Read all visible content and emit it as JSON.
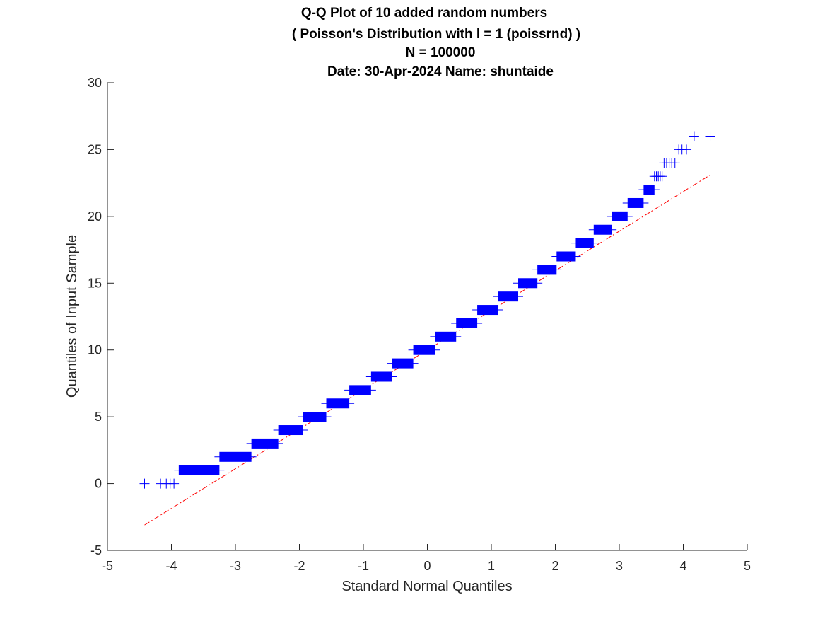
{
  "chart_data": {
    "type": "scatter",
    "title": [
      "Q-Q Plot of 10 added random numbers",
      "( Poisson's Distribution with l = 1 (poissrnd) )",
      "N = 100000",
      "Date: 30-Apr-2024 Name: shuntaide"
    ],
    "xlabel": "Standard Normal Quantiles",
    "ylabel": "Quantiles of Input Sample",
    "xlim": [
      -5,
      5
    ],
    "ylim": [
      -5,
      30
    ],
    "xticks": [
      "-5",
      "-4",
      "-3",
      "-2",
      "-1",
      "0",
      "1",
      "2",
      "3",
      "4",
      "5"
    ],
    "yticks": [
      "-5",
      "0",
      "5",
      "10",
      "15",
      "20",
      "25",
      "30"
    ],
    "grid": false,
    "marker": "+",
    "marker_color": "#0000ff",
    "reference_line_color": "#ff0000",
    "reference_line_style": "dash-dot",
    "reference_line": {
      "x": [
        -4.42,
        4.42
      ],
      "y": [
        -3.1,
        23.1
      ]
    },
    "steps": [
      {
        "y": 0,
        "x_start": -3.95,
        "x_end": -3.95
      },
      {
        "y": 1,
        "x_start": -3.88,
        "x_end": -3.25
      },
      {
        "y": 2,
        "x_start": -3.25,
        "x_end": -2.75
      },
      {
        "y": 3,
        "x_start": -2.75,
        "x_end": -2.33
      },
      {
        "y": 4,
        "x_start": -2.33,
        "x_end": -1.95
      },
      {
        "y": 5,
        "x_start": -1.95,
        "x_end": -1.58
      },
      {
        "y": 6,
        "x_start": -1.58,
        "x_end": -1.22
      },
      {
        "y": 7,
        "x_start": -1.22,
        "x_end": -0.88
      },
      {
        "y": 8,
        "x_start": -0.88,
        "x_end": -0.55
      },
      {
        "y": 9,
        "x_start": -0.55,
        "x_end": -0.22
      },
      {
        "y": 10,
        "x_start": -0.22,
        "x_end": 0.12
      },
      {
        "y": 11,
        "x_start": 0.12,
        "x_end": 0.45
      },
      {
        "y": 12,
        "x_start": 0.45,
        "x_end": 0.78
      },
      {
        "y": 13,
        "x_start": 0.78,
        "x_end": 1.1
      },
      {
        "y": 14,
        "x_start": 1.1,
        "x_end": 1.42
      },
      {
        "y": 15,
        "x_start": 1.42,
        "x_end": 1.72
      },
      {
        "y": 16,
        "x_start": 1.72,
        "x_end": 2.02
      },
      {
        "y": 17,
        "x_start": 2.02,
        "x_end": 2.32
      },
      {
        "y": 18,
        "x_start": 2.32,
        "x_end": 2.6
      },
      {
        "y": 19,
        "x_start": 2.6,
        "x_end": 2.88
      },
      {
        "y": 20,
        "x_start": 2.88,
        "x_end": 3.13
      },
      {
        "y": 21,
        "x_start": 3.13,
        "x_end": 3.38
      },
      {
        "y": 22,
        "x_start": 3.38,
        "x_end": 3.55
      }
    ],
    "isolated_points": [
      {
        "x": -4.42,
        "y": 0
      },
      {
        "x": -4.17,
        "y": 0
      },
      {
        "x": -4.08,
        "y": 0
      },
      {
        "x": -4.02,
        "y": 0
      },
      {
        "x": -3.96,
        "y": 0
      },
      {
        "x": 3.55,
        "y": 23
      },
      {
        "x": 3.58,
        "y": 23
      },
      {
        "x": 3.61,
        "y": 23
      },
      {
        "x": 3.64,
        "y": 23
      },
      {
        "x": 3.67,
        "y": 23
      },
      {
        "x": 3.7,
        "y": 24
      },
      {
        "x": 3.74,
        "y": 24
      },
      {
        "x": 3.78,
        "y": 24
      },
      {
        "x": 3.82,
        "y": 24
      },
      {
        "x": 3.87,
        "y": 24
      },
      {
        "x": 3.93,
        "y": 25
      },
      {
        "x": 3.98,
        "y": 25
      },
      {
        "x": 4.05,
        "y": 25
      },
      {
        "x": 4.17,
        "y": 26
      },
      {
        "x": 4.42,
        "y": 26
      }
    ]
  }
}
